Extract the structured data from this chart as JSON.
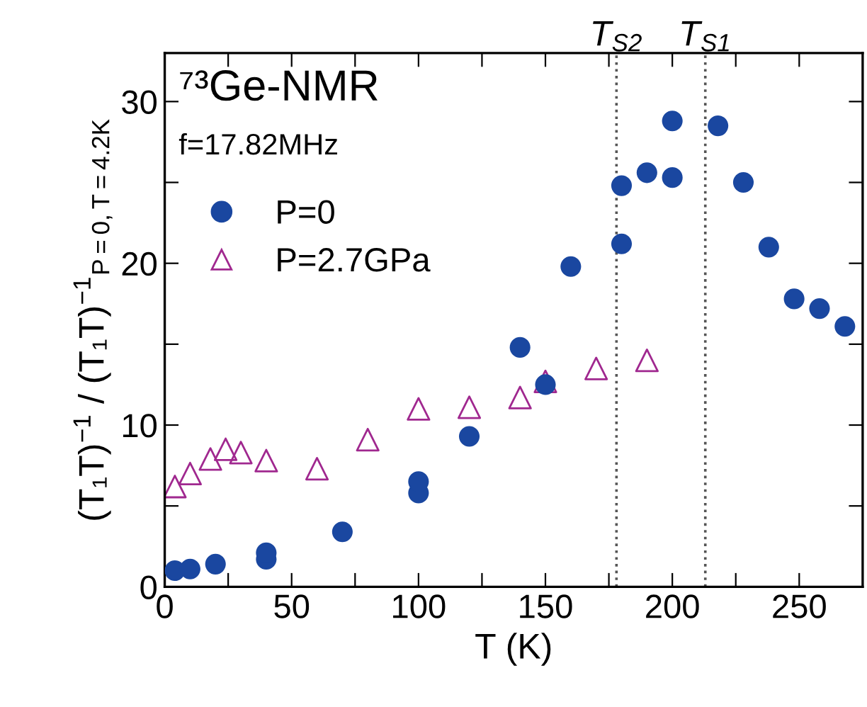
{
  "chart_data": {
    "type": "scatter",
    "xlabel": "T (K)",
    "ylabel": "(T₁T)$^{−1}$ / (T₁T)$^{−1}$$_{P=0,T=4.2K}$",
    "annotations": [
      "⁷³Ge-NMR",
      "f=17.82MHz"
    ],
    "series": [
      {
        "name": "P=0",
        "color": "#1a47a0",
        "marker": "circle",
        "x": [
          4,
          10,
          20,
          40,
          40,
          70,
          100,
          100,
          120,
          140,
          150,
          160,
          180,
          180,
          190,
          200,
          200,
          218,
          228,
          238,
          248,
          258,
          268
        ],
        "values": [
          1.0,
          1.1,
          1.4,
          1.7,
          2.1,
          3.4,
          5.8,
          6.5,
          9.3,
          14.8,
          12.5,
          19.8,
          21.2,
          24.8,
          25.6,
          28.8,
          25.3,
          28.5,
          25.0,
          21.0,
          17.8,
          17.2,
          16.1
        ]
      },
      {
        "name": "P=2.7GPa",
        "color": "#a0288f",
        "marker": "triangle",
        "x": [
          4,
          10,
          18,
          24,
          30,
          40,
          60,
          80,
          100,
          120,
          140,
          150,
          170,
          190
        ],
        "values": [
          6.2,
          7.0,
          7.9,
          8.5,
          8.3,
          7.8,
          7.3,
          9.1,
          11.0,
          11.1,
          11.7,
          12.7,
          13.5,
          14.0
        ]
      }
    ],
    "xlim": [
      0,
      275
    ],
    "ylim": [
      0,
      33
    ],
    "xticks": [
      0,
      {
        "value": 25,
        "label": null
      },
      50,
      {
        "value": 75,
        "label": null
      },
      100,
      {
        "value": 125,
        "label": null
      },
      150,
      {
        "value": 175,
        "label": null
      },
      200,
      {
        "value": 225,
        "label": null
      },
      250
    ],
    "yticks": [
      0,
      {
        "value": 5,
        "label": null
      },
      10,
      {
        "value": 15,
        "label": null
      },
      20,
      {
        "value": 25,
        "label": null
      },
      30
    ],
    "ref_lines": [
      {
        "axis": "x",
        "value": 178,
        "label": "T$_{S2}$",
        "color": "#555555",
        "line_style": "dotted"
      },
      {
        "axis": "x",
        "value": 213,
        "label": "T$_{S1}$",
        "color": "#555555",
        "line_style": "dotted"
      }
    ],
    "grid": false,
    "legend": "top left"
  }
}
